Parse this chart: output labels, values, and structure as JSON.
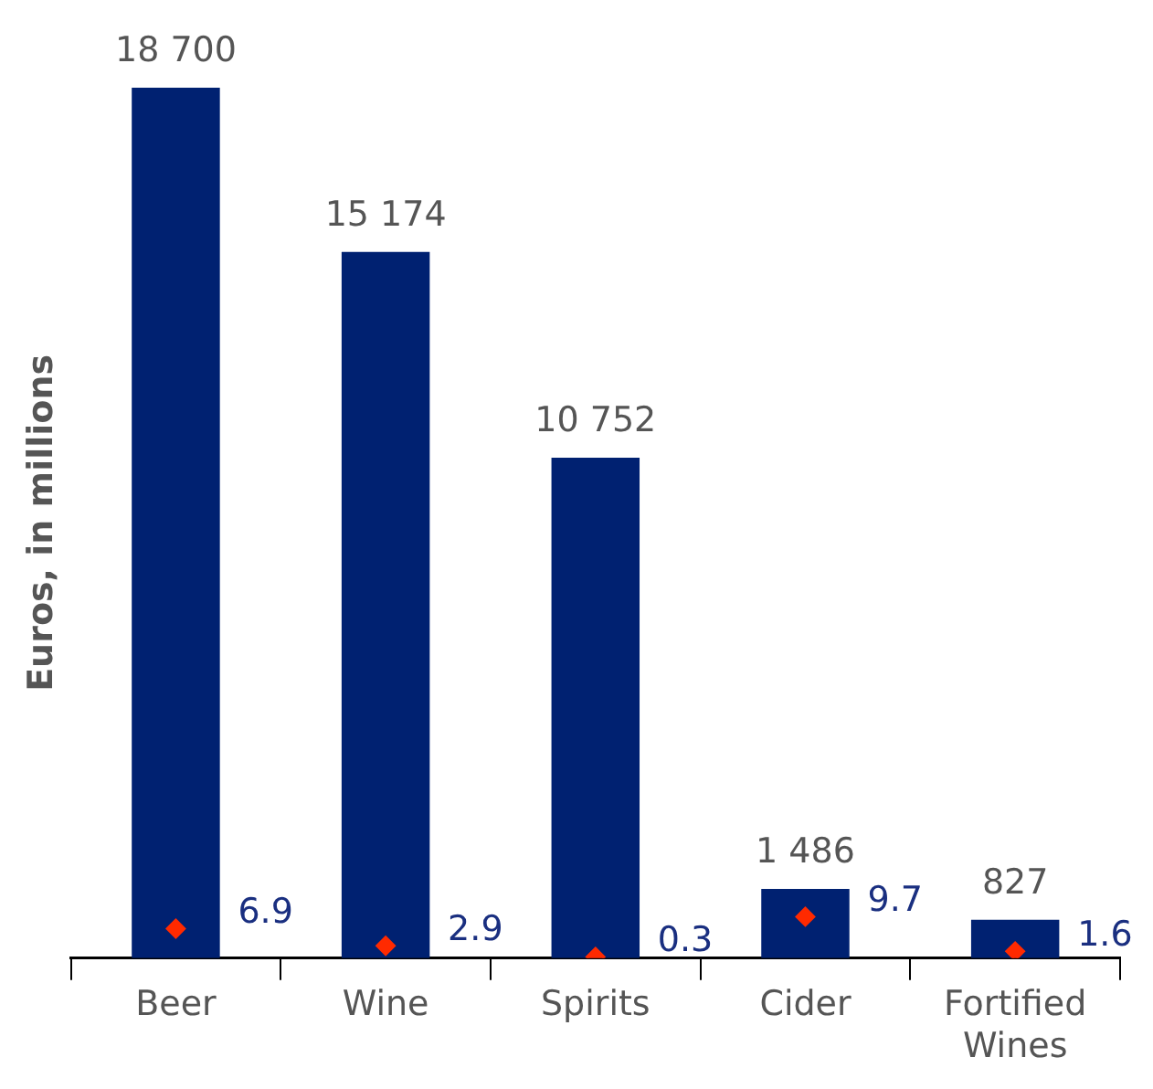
{
  "chart_data": {
    "type": "bar",
    "ylabel": "Euros, in millions",
    "categories": [
      "Beer",
      "Wine",
      "Spirits",
      "Cider",
      "Fortified Wines"
    ],
    "series": [
      {
        "color": "#002171",
        "values": [
          18700,
          15174,
          10752,
          1486,
          827
        ],
        "value_labels": [
          "18 700",
          "15 174",
          "10 752",
          "1 486",
          "827"
        ]
      },
      {
        "type": "scatter",
        "axis": "y2",
        "color": "#ff2a00",
        "marker": "diamond",
        "values": [
          6.9,
          2.9,
          0.3,
          9.7,
          1.6
        ],
        "value_labels": [
          "6.9",
          "2.9",
          "0.3",
          "9.7",
          "1.6"
        ]
      }
    ],
    "grid": false,
    "legend": false,
    "tick_labels": "x"
  }
}
